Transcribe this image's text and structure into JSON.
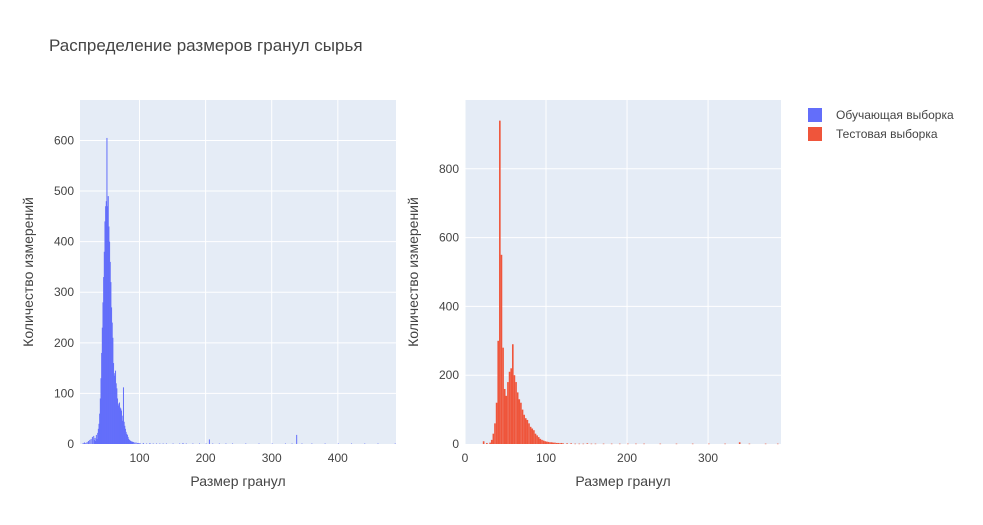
{
  "figure": {
    "title": "Распределение размеров гранул сырья"
  },
  "legend": {
    "placement": "top-right",
    "items": [
      {
        "label": "Обучающая выборка",
        "color": "#636efa"
      },
      {
        "label": "Тестовая выборка",
        "color": "#ef553b"
      }
    ]
  },
  "chart_data": [
    {
      "type": "bar",
      "series_name": "Обучающая выборка",
      "color": "#636efa",
      "xlabel": "Размер гранул",
      "ylabel": "Количество измерений",
      "xlim": [
        10,
        488
      ],
      "ylim": [
        0,
        680
      ],
      "xticks": [
        100,
        200,
        300,
        400
      ],
      "yticks": [
        0,
        100,
        200,
        300,
        400,
        500,
        600
      ],
      "bin_width": 1,
      "grid": true,
      "bins": [
        [
          14,
          2
        ],
        [
          16,
          3
        ],
        [
          18,
          2
        ],
        [
          20,
          4
        ],
        [
          22,
          6
        ],
        [
          24,
          8
        ],
        [
          26,
          10
        ],
        [
          28,
          14
        ],
        [
          30,
          16
        ],
        [
          31,
          8
        ],
        [
          32,
          12
        ],
        [
          33,
          6
        ],
        [
          34,
          18
        ],
        [
          35,
          10
        ],
        [
          36,
          22
        ],
        [
          37,
          30
        ],
        [
          38,
          40
        ],
        [
          39,
          60
        ],
        [
          40,
          90
        ],
        [
          41,
          130
        ],
        [
          42,
          180
        ],
        [
          43,
          230
        ],
        [
          44,
          280
        ],
        [
          45,
          330
        ],
        [
          46,
          380
        ],
        [
          47,
          440
        ],
        [
          48,
          470
        ],
        [
          49,
          480
        ],
        [
          50,
          605
        ],
        [
          51,
          470
        ],
        [
          52,
          490
        ],
        [
          53,
          430
        ],
        [
          54,
          400
        ],
        [
          55,
          360
        ],
        [
          56,
          320
        ],
        [
          57,
          270
        ],
        [
          58,
          240
        ],
        [
          59,
          210
        ],
        [
          60,
          160
        ],
        [
          61,
          140
        ],
        [
          62,
          135
        ],
        [
          63,
          145
        ],
        [
          64,
          120
        ],
        [
          65,
          110
        ],
        [
          66,
          90
        ],
        [
          67,
          80
        ],
        [
          68,
          76
        ],
        [
          69,
          82
        ],
        [
          70,
          72
        ],
        [
          71,
          70
        ],
        [
          72,
          66
        ],
        [
          73,
          56
        ],
        [
          74,
          46
        ],
        [
          75,
          112
        ],
        [
          76,
          44
        ],
        [
          77,
          36
        ],
        [
          78,
          30
        ],
        [
          79,
          24
        ],
        [
          80,
          20
        ],
        [
          81,
          18
        ],
        [
          82,
          14
        ],
        [
          83,
          10
        ],
        [
          84,
          8
        ],
        [
          85,
          7
        ],
        [
          86,
          6
        ],
        [
          87,
          5
        ],
        [
          88,
          5
        ],
        [
          89,
          4
        ],
        [
          90,
          4
        ],
        [
          92,
          3
        ],
        [
          94,
          3
        ],
        [
          96,
          2
        ],
        [
          98,
          2
        ],
        [
          100,
          2
        ],
        [
          105,
          2
        ],
        [
          110,
          1
        ],
        [
          115,
          2
        ],
        [
          120,
          1
        ],
        [
          125,
          1
        ],
        [
          130,
          1
        ],
        [
          135,
          1
        ],
        [
          140,
          1
        ],
        [
          150,
          1
        ],
        [
          160,
          1
        ],
        [
          165,
          2
        ],
        [
          170,
          1
        ],
        [
          180,
          1
        ],
        [
          190,
          1
        ],
        [
          200,
          1
        ],
        [
          205,
          9
        ],
        [
          210,
          1
        ],
        [
          220,
          1
        ],
        [
          230,
          1
        ],
        [
          240,
          1
        ],
        [
          260,
          1
        ],
        [
          280,
          1
        ],
        [
          300,
          1
        ],
        [
          320,
          1
        ],
        [
          330,
          1
        ],
        [
          337,
          18
        ],
        [
          345,
          1
        ],
        [
          360,
          1
        ],
        [
          380,
          1
        ],
        [
          400,
          1
        ],
        [
          420,
          1
        ],
        [
          440,
          1
        ],
        [
          460,
          1
        ],
        [
          486,
          1
        ]
      ]
    },
    {
      "type": "bar",
      "series_name": "Тестовая выборка",
      "color": "#ef553b",
      "xlabel": "Размер гранул",
      "ylabel": "Количество измерений",
      "xlim": [
        0,
        390
      ],
      "ylim": [
        0,
        1000
      ],
      "xticks": [
        0,
        100,
        200,
        300
      ],
      "yticks": [
        0,
        200,
        400,
        600,
        800
      ],
      "bin_width": 2,
      "grid": true,
      "bins": [
        [
          22,
          8
        ],
        [
          26,
          3
        ],
        [
          30,
          4
        ],
        [
          32,
          12
        ],
        [
          34,
          30
        ],
        [
          36,
          60
        ],
        [
          38,
          120
        ],
        [
          40,
          300
        ],
        [
          42,
          940
        ],
        [
          44,
          550
        ],
        [
          46,
          280
        ],
        [
          48,
          160
        ],
        [
          50,
          140
        ],
        [
          52,
          180
        ],
        [
          54,
          210
        ],
        [
          56,
          220
        ],
        [
          58,
          290
        ],
        [
          60,
          200
        ],
        [
          62,
          180
        ],
        [
          64,
          150
        ],
        [
          66,
          130
        ],
        [
          68,
          120
        ],
        [
          70,
          100
        ],
        [
          72,
          85
        ],
        [
          74,
          75
        ],
        [
          76,
          70
        ],
        [
          78,
          60
        ],
        [
          80,
          50
        ],
        [
          82,
          45
        ],
        [
          84,
          40
        ],
        [
          86,
          30
        ],
        [
          88,
          25
        ],
        [
          90,
          20
        ],
        [
          92,
          15
        ],
        [
          94,
          12
        ],
        [
          96,
          10
        ],
        [
          98,
          8
        ],
        [
          100,
          7
        ],
        [
          102,
          6
        ],
        [
          104,
          5
        ],
        [
          106,
          5
        ],
        [
          108,
          4
        ],
        [
          110,
          4
        ],
        [
          112,
          3
        ],
        [
          114,
          3
        ],
        [
          116,
          2
        ],
        [
          118,
          3
        ],
        [
          120,
          2
        ],
        [
          125,
          2
        ],
        [
          130,
          2
        ],
        [
          135,
          1
        ],
        [
          140,
          1
        ],
        [
          145,
          1
        ],
        [
          150,
          2
        ],
        [
          155,
          1
        ],
        [
          160,
          1
        ],
        [
          170,
          1
        ],
        [
          180,
          1
        ],
        [
          190,
          1
        ],
        [
          200,
          1
        ],
        [
          210,
          1
        ],
        [
          220,
          1
        ],
        [
          240,
          1
        ],
        [
          260,
          1
        ],
        [
          280,
          1
        ],
        [
          300,
          1
        ],
        [
          320,
          1
        ],
        [
          338,
          5
        ],
        [
          350,
          1
        ],
        [
          370,
          1
        ],
        [
          385,
          1
        ]
      ]
    }
  ]
}
